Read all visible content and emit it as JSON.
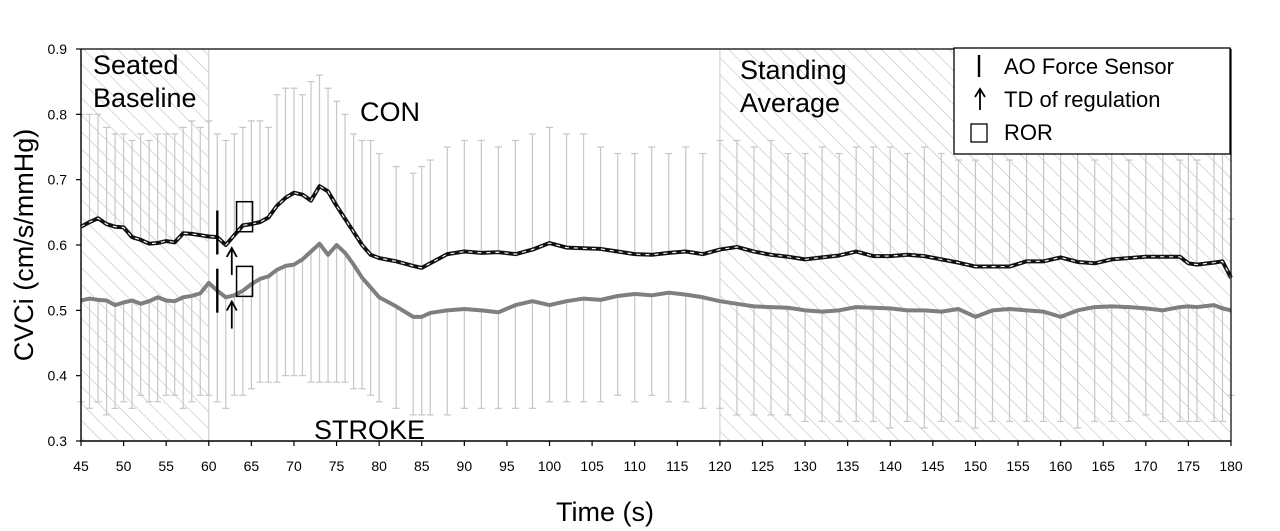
{
  "chart_data": {
    "type": "line",
    "title": "",
    "xlabel": "Time (s)",
    "ylabel": "CVCi (cm/s/mmHg)",
    "xlim": [
      45,
      180
    ],
    "ylim": [
      0.3,
      0.9
    ],
    "x_ticks": [
      45,
      50,
      55,
      60,
      65,
      70,
      75,
      80,
      85,
      90,
      95,
      100,
      105,
      110,
      115,
      120,
      125,
      130,
      135,
      140,
      145,
      150,
      155,
      160,
      165,
      170,
      175,
      180
    ],
    "y_ticks": [
      0.3,
      0.4,
      0.5,
      0.6,
      0.7,
      0.8,
      0.9
    ],
    "y_tick_labels": [
      "0.3",
      "0.4",
      "0.5",
      "0.6",
      "0.7",
      "0.8",
      "0.9"
    ],
    "grid": false,
    "legend_position": "top-right",
    "regions": [
      {
        "label_lines": [
          "Seated",
          "Baseline"
        ],
        "x_start": 45,
        "x_end": 60
      },
      {
        "label_lines": [
          "Standing",
          "Average"
        ],
        "x_start": 120,
        "x_end": 180
      }
    ],
    "series": [
      {
        "name": "CON",
        "color": "#000000",
        "style": "dashed-over-solid",
        "x": [
          45,
          46,
          47,
          48,
          49,
          50,
          51,
          52,
          53,
          54,
          55,
          56,
          57,
          58,
          59,
          60,
          61,
          62,
          63,
          64,
          65,
          66,
          67,
          68,
          69,
          70,
          71,
          72,
          73,
          74,
          75,
          76,
          77,
          78,
          79,
          80,
          82,
          84,
          85,
          86,
          88,
          90,
          92,
          94,
          96,
          98,
          100,
          102,
          104,
          106,
          108,
          110,
          112,
          114,
          116,
          118,
          120,
          122,
          124,
          126,
          128,
          130,
          132,
          134,
          136,
          138,
          140,
          142,
          144,
          146,
          148,
          150,
          152,
          154,
          156,
          158,
          160,
          162,
          164,
          166,
          168,
          170,
          172,
          174,
          175,
          176,
          178,
          179,
          180
        ],
        "values": [
          0.628,
          0.635,
          0.641,
          0.632,
          0.628,
          0.627,
          0.612,
          0.608,
          0.602,
          0.603,
          0.606,
          0.604,
          0.618,
          0.617,
          0.615,
          0.613,
          0.612,
          0.6,
          0.615,
          0.63,
          0.632,
          0.635,
          0.642,
          0.66,
          0.672,
          0.68,
          0.677,
          0.668,
          0.69,
          0.682,
          0.66,
          0.64,
          0.62,
          0.6,
          0.585,
          0.58,
          0.575,
          0.568,
          0.565,
          0.572,
          0.586,
          0.59,
          0.588,
          0.589,
          0.586,
          0.593,
          0.603,
          0.596,
          0.595,
          0.594,
          0.59,
          0.586,
          0.585,
          0.588,
          0.59,
          0.586,
          0.593,
          0.597,
          0.59,
          0.585,
          0.582,
          0.578,
          0.581,
          0.584,
          0.59,
          0.583,
          0.583,
          0.585,
          0.583,
          0.578,
          0.573,
          0.567,
          0.567,
          0.567,
          0.575,
          0.575,
          0.581,
          0.574,
          0.572,
          0.578,
          0.58,
          0.582,
          0.582,
          0.582,
          0.572,
          0.57,
          0.573,
          0.575,
          0.55
        ],
        "error_upper": [
          0.8,
          0.8,
          0.8,
          0.78,
          0.77,
          0.77,
          0.76,
          0.77,
          0.76,
          0.77,
          0.77,
          0.77,
          0.78,
          0.79,
          0.78,
          0.79,
          0.77,
          0.76,
          0.77,
          0.78,
          0.79,
          0.79,
          0.78,
          0.83,
          0.84,
          0.84,
          0.83,
          0.85,
          0.86,
          0.84,
          0.82,
          0.8,
          0.77,
          0.76,
          0.76,
          0.74,
          0.72,
          0.71,
          0.72,
          0.73,
          0.75,
          0.76,
          0.76,
          0.75,
          0.76,
          0.77,
          0.78,
          0.77,
          0.77,
          0.75,
          0.74,
          0.74,
          0.75,
          0.74,
          0.75,
          0.74,
          0.76,
          0.76,
          0.75,
          0.76,
          0.74,
          0.74,
          0.75,
          0.74,
          0.75,
          0.75,
          0.75,
          0.74,
          0.75,
          0.74,
          0.73,
          0.73,
          0.74,
          0.73,
          0.74,
          0.74,
          0.74,
          0.74,
          0.73,
          0.74,
          0.73,
          0.74,
          0.74,
          0.73,
          0.74,
          0.73,
          0.74,
          0.74,
          0.64
        ]
      },
      {
        "name": "STROKE",
        "color": "#808080",
        "style": "solid",
        "x": [
          45,
          46,
          47,
          48,
          49,
          50,
          51,
          52,
          53,
          54,
          55,
          56,
          57,
          58,
          59,
          60,
          61,
          62,
          63,
          64,
          65,
          66,
          67,
          68,
          69,
          70,
          71,
          72,
          73,
          74,
          75,
          76,
          77,
          78,
          79,
          80,
          82,
          84,
          85,
          86,
          88,
          90,
          92,
          94,
          96,
          98,
          100,
          102,
          104,
          106,
          108,
          110,
          112,
          114,
          116,
          118,
          120,
          122,
          124,
          126,
          128,
          130,
          132,
          134,
          136,
          138,
          140,
          142,
          144,
          146,
          148,
          150,
          152,
          154,
          156,
          158,
          160,
          162,
          164,
          166,
          168,
          170,
          172,
          174,
          175,
          176,
          178,
          179,
          180
        ],
        "values": [
          0.515,
          0.518,
          0.516,
          0.515,
          0.508,
          0.512,
          0.515,
          0.51,
          0.514,
          0.52,
          0.515,
          0.514,
          0.52,
          0.522,
          0.526,
          0.542,
          0.53,
          0.52,
          0.523,
          0.53,
          0.54,
          0.548,
          0.552,
          0.562,
          0.568,
          0.57,
          0.578,
          0.59,
          0.602,
          0.585,
          0.6,
          0.588,
          0.57,
          0.55,
          0.535,
          0.52,
          0.506,
          0.49,
          0.49,
          0.496,
          0.5,
          0.502,
          0.5,
          0.497,
          0.508,
          0.514,
          0.508,
          0.514,
          0.518,
          0.516,
          0.522,
          0.525,
          0.523,
          0.527,
          0.524,
          0.52,
          0.514,
          0.51,
          0.506,
          0.505,
          0.504,
          0.5,
          0.498,
          0.5,
          0.505,
          0.504,
          0.503,
          0.5,
          0.5,
          0.498,
          0.502,
          0.49,
          0.5,
          0.502,
          0.5,
          0.498,
          0.49,
          0.5,
          0.505,
          0.506,
          0.505,
          0.503,
          0.5,
          0.505,
          0.506,
          0.505,
          0.508,
          0.503,
          0.5
        ],
        "error_lower": [
          0.36,
          0.35,
          0.36,
          0.34,
          0.35,
          0.36,
          0.35,
          0.37,
          0.36,
          0.36,
          0.37,
          0.37,
          0.35,
          0.36,
          0.37,
          0.37,
          0.36,
          0.35,
          0.37,
          0.37,
          0.38,
          0.39,
          0.39,
          0.39,
          0.4,
          0.4,
          0.4,
          0.39,
          0.39,
          0.39,
          0.39,
          0.39,
          0.38,
          0.38,
          0.37,
          0.36,
          0.35,
          0.34,
          0.34,
          0.34,
          0.34,
          0.35,
          0.35,
          0.35,
          0.35,
          0.35,
          0.36,
          0.36,
          0.36,
          0.36,
          0.37,
          0.36,
          0.37,
          0.36,
          0.36,
          0.35,
          0.35,
          0.34,
          0.34,
          0.34,
          0.34,
          0.33,
          0.33,
          0.33,
          0.33,
          0.33,
          0.32,
          0.33,
          0.32,
          0.33,
          0.33,
          0.32,
          0.33,
          0.33,
          0.33,
          0.33,
          0.33,
          0.32,
          0.33,
          0.33,
          0.33,
          0.34,
          0.33,
          0.33,
          0.33,
          0.33,
          0.33,
          0.33,
          0.37
        ]
      }
    ],
    "markers": {
      "ao_force_sensor": [
        {
          "series": "CON",
          "x": 61,
          "y": 0.613
        },
        {
          "series": "STROKE",
          "x": 61,
          "y": 0.524
        }
      ],
      "td_of_regulation": [
        {
          "series": "CON",
          "x": 62.7,
          "y": 0.6
        },
        {
          "series": "STROKE",
          "x": 62.7,
          "y": 0.518
        }
      ],
      "ror": [
        {
          "series": "CON",
          "x": 64.2,
          "y": 0.628
        },
        {
          "series": "STROKE",
          "x": 64.2,
          "y": 0.529
        }
      ]
    },
    "legend": [
      {
        "key": "ao_force_sensor",
        "label": "AO Force Sensor"
      },
      {
        "key": "td_of_regulation",
        "label": "TD of regulation"
      },
      {
        "key": "ror",
        "label": "ROR"
      }
    ]
  }
}
